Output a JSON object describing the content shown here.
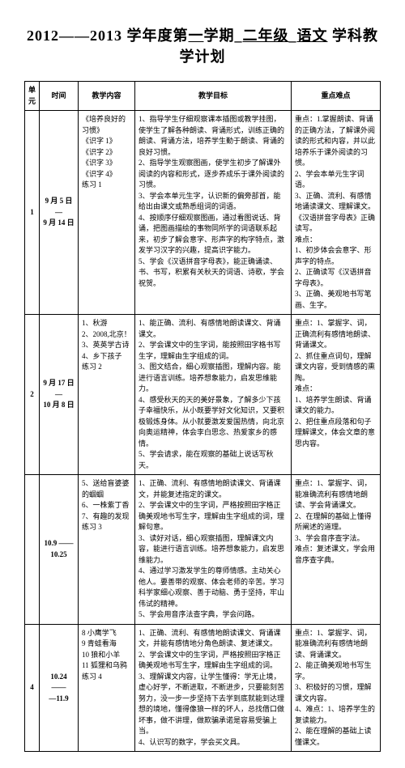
{
  "title_prefix": "2012——2013 学年度第",
  "title_sem": "一",
  "title_mid": "学期",
  "title_grade": "二年级",
  "title_sep": " ",
  "title_subject": "语文",
  "title_suffix": " 学科教学计划",
  "headers": {
    "unit": "单元",
    "time": "时间",
    "content": "教学内容",
    "goal": "教学目标",
    "key": "重点难点"
  },
  "rows": [
    {
      "unit": "1",
      "time": "9 月 5 日\n—\n9 月 14 日",
      "content": "《培养良好的习惯》\n《识字 1》\n《识字 2》\n《识字 3》\n《识字 4》\n练习 1",
      "goal": "1、指导学生仔细观察课本插图或教学挂图，使学生了解各种朗读、背诵形式，训练正确的朗读、背诵方法，培养学生勤于朗读、背诵的良好习惯。\n2、指导学生观察图画，使学生初步了解课外阅读的内容和形式，逐步养成乐于课外阅读的习惯。\n3、学会本单元生字，认识新的偏旁部首，能给出由课文或熟悉组词的词语。\n4、按顺序仔细观察图画，通过看图说话、背诵，把图画描绘的事物同所学的词语联系起来，初步了解会意字、形声字的构字特点，激发学习汉字的兴趣，提高识字能力。\n5、学会《汉语拼音字母表》，能正确诵读、书、书写，积累有关秋天的词语、诗歌，学会祝贺。",
      "key": "重点：1.掌握朗读、背诵的正确方法，了解课外阅读的形式和内容，并以此培养乐于课外阅读的习惯。\n2、学会本单元生字词语。\n3、正确、流利、有感情地诵读课文、理解课文。\n《汉语拼音字母表》正确读写。\n难点：\n1、初步体会会意字、形声字的特点。\n2、正确读写《汉语拼音字母表》。\n3、正确、美观地书写笔画、生字。"
    },
    {
      "unit": "2",
      "time": "9 月 17 日\n—\n10 月 8 日",
      "content": "1、秋游\n2、2008,北京！\n3、英英学古诗\n4、乡下孩子\n练习 2",
      "goal": "1、能正确、流利、有感情地朗读课文、背诵课文。\n2、学会课文中的生字词，能按照田字格书写生字，理解由生字组成的词。\n3、图文结合，细心观察插图，理解内容。能进行语言训练。培养想象能力，启发思维能力。\n4、感受秋天的天的美好景象，了解多少下孩子幸福快乐，从小既要学好文化知识，又要积极锻炼身体。从小就要激发爱国热情，向北京向奥运精神，体会李白思念、热爱家乡的感情。\n5、学会请求，能在观察的基础上说话写秋天。",
      "key": "重点：1、掌握字、词，正确流利有感情地朗读、背诵课文。\n2、抓住重点词句，理解课文内容，受到情感的熏陶。\n难点：\n1、培养学生朗读、背诵课文的能力。\n2、把住重点段落和句子理解课文，体会文章的意思内容。"
    },
    {
      "unit": "",
      "time": "10.9 ——\n10.25",
      "content": "5、送给盲婆婆的蝈蝈\n6、一株紫丁香\n7、有趣的发现\n练习 3",
      "goal": "1、正确、流利、有感情地朗读课文、背诵课文，并能复述指定的课文。\n2、学会课文中的生字词，严格按照田字格正确美观地书写生字，理解由生字组成的词，理解句意。\n3、读好对话，细心观察插图，理解课文内容，能进行语言训练。培养想象能力，启发思维能力。\n4、通过学习激发学生的尊师情感。主动关心他人。要善带的观察、体会老师的辛苦。学习科学家细心观察、善于动脑、勇于坚持，牢山伟试的精神。\n5、学会用音序法查字典，学会问路。",
      "key": "重点：1、掌握字、词，能准确流利有感情地朗读、学会背诵课文。\n2、在理解的基础上懂得所阐述的道理。\n3、学会音序查字法。\n难点：复述课文，学会用音序查字典。"
    },
    {
      "unit": "4",
      "time": "10.24 ——\n—11.9",
      "content": "8 小鹰学飞\n9 青蛙看海\n10 狼和小羊\n11 狐狸和乌鸦\n练习 4",
      "goal": "1、正确、流利、有感情地朗读课文、背诵课文，并能有感情地分角色朗读、复述课文。\n2、学会课文中的生字词，严格按照田字格正确美观地书写生字，理解由生字组成的词。\n3、理解课文内容，让学生懂得：学无止境，虚心好学，不断进取，不断进步，只要能刻苦努力，没一步一步坚持下去学到底就能到达理想的境地，懂得像狼一样的坏人，总找借口做坏事，做不讲理，做欺骗承诺是容易受骗上当。\n4、认识写的数字，学会买文具。",
      "key": "重点：1、掌握字、词，能准确流利有感情地朗读、背诵课文。\n2、能正确美观地书写生字。\n3、积极好的习惯，理解课文内容。\n4、难点：1、培养学生的复读能力。\n2、能在理解的基础上读懂课文。"
    }
  ]
}
